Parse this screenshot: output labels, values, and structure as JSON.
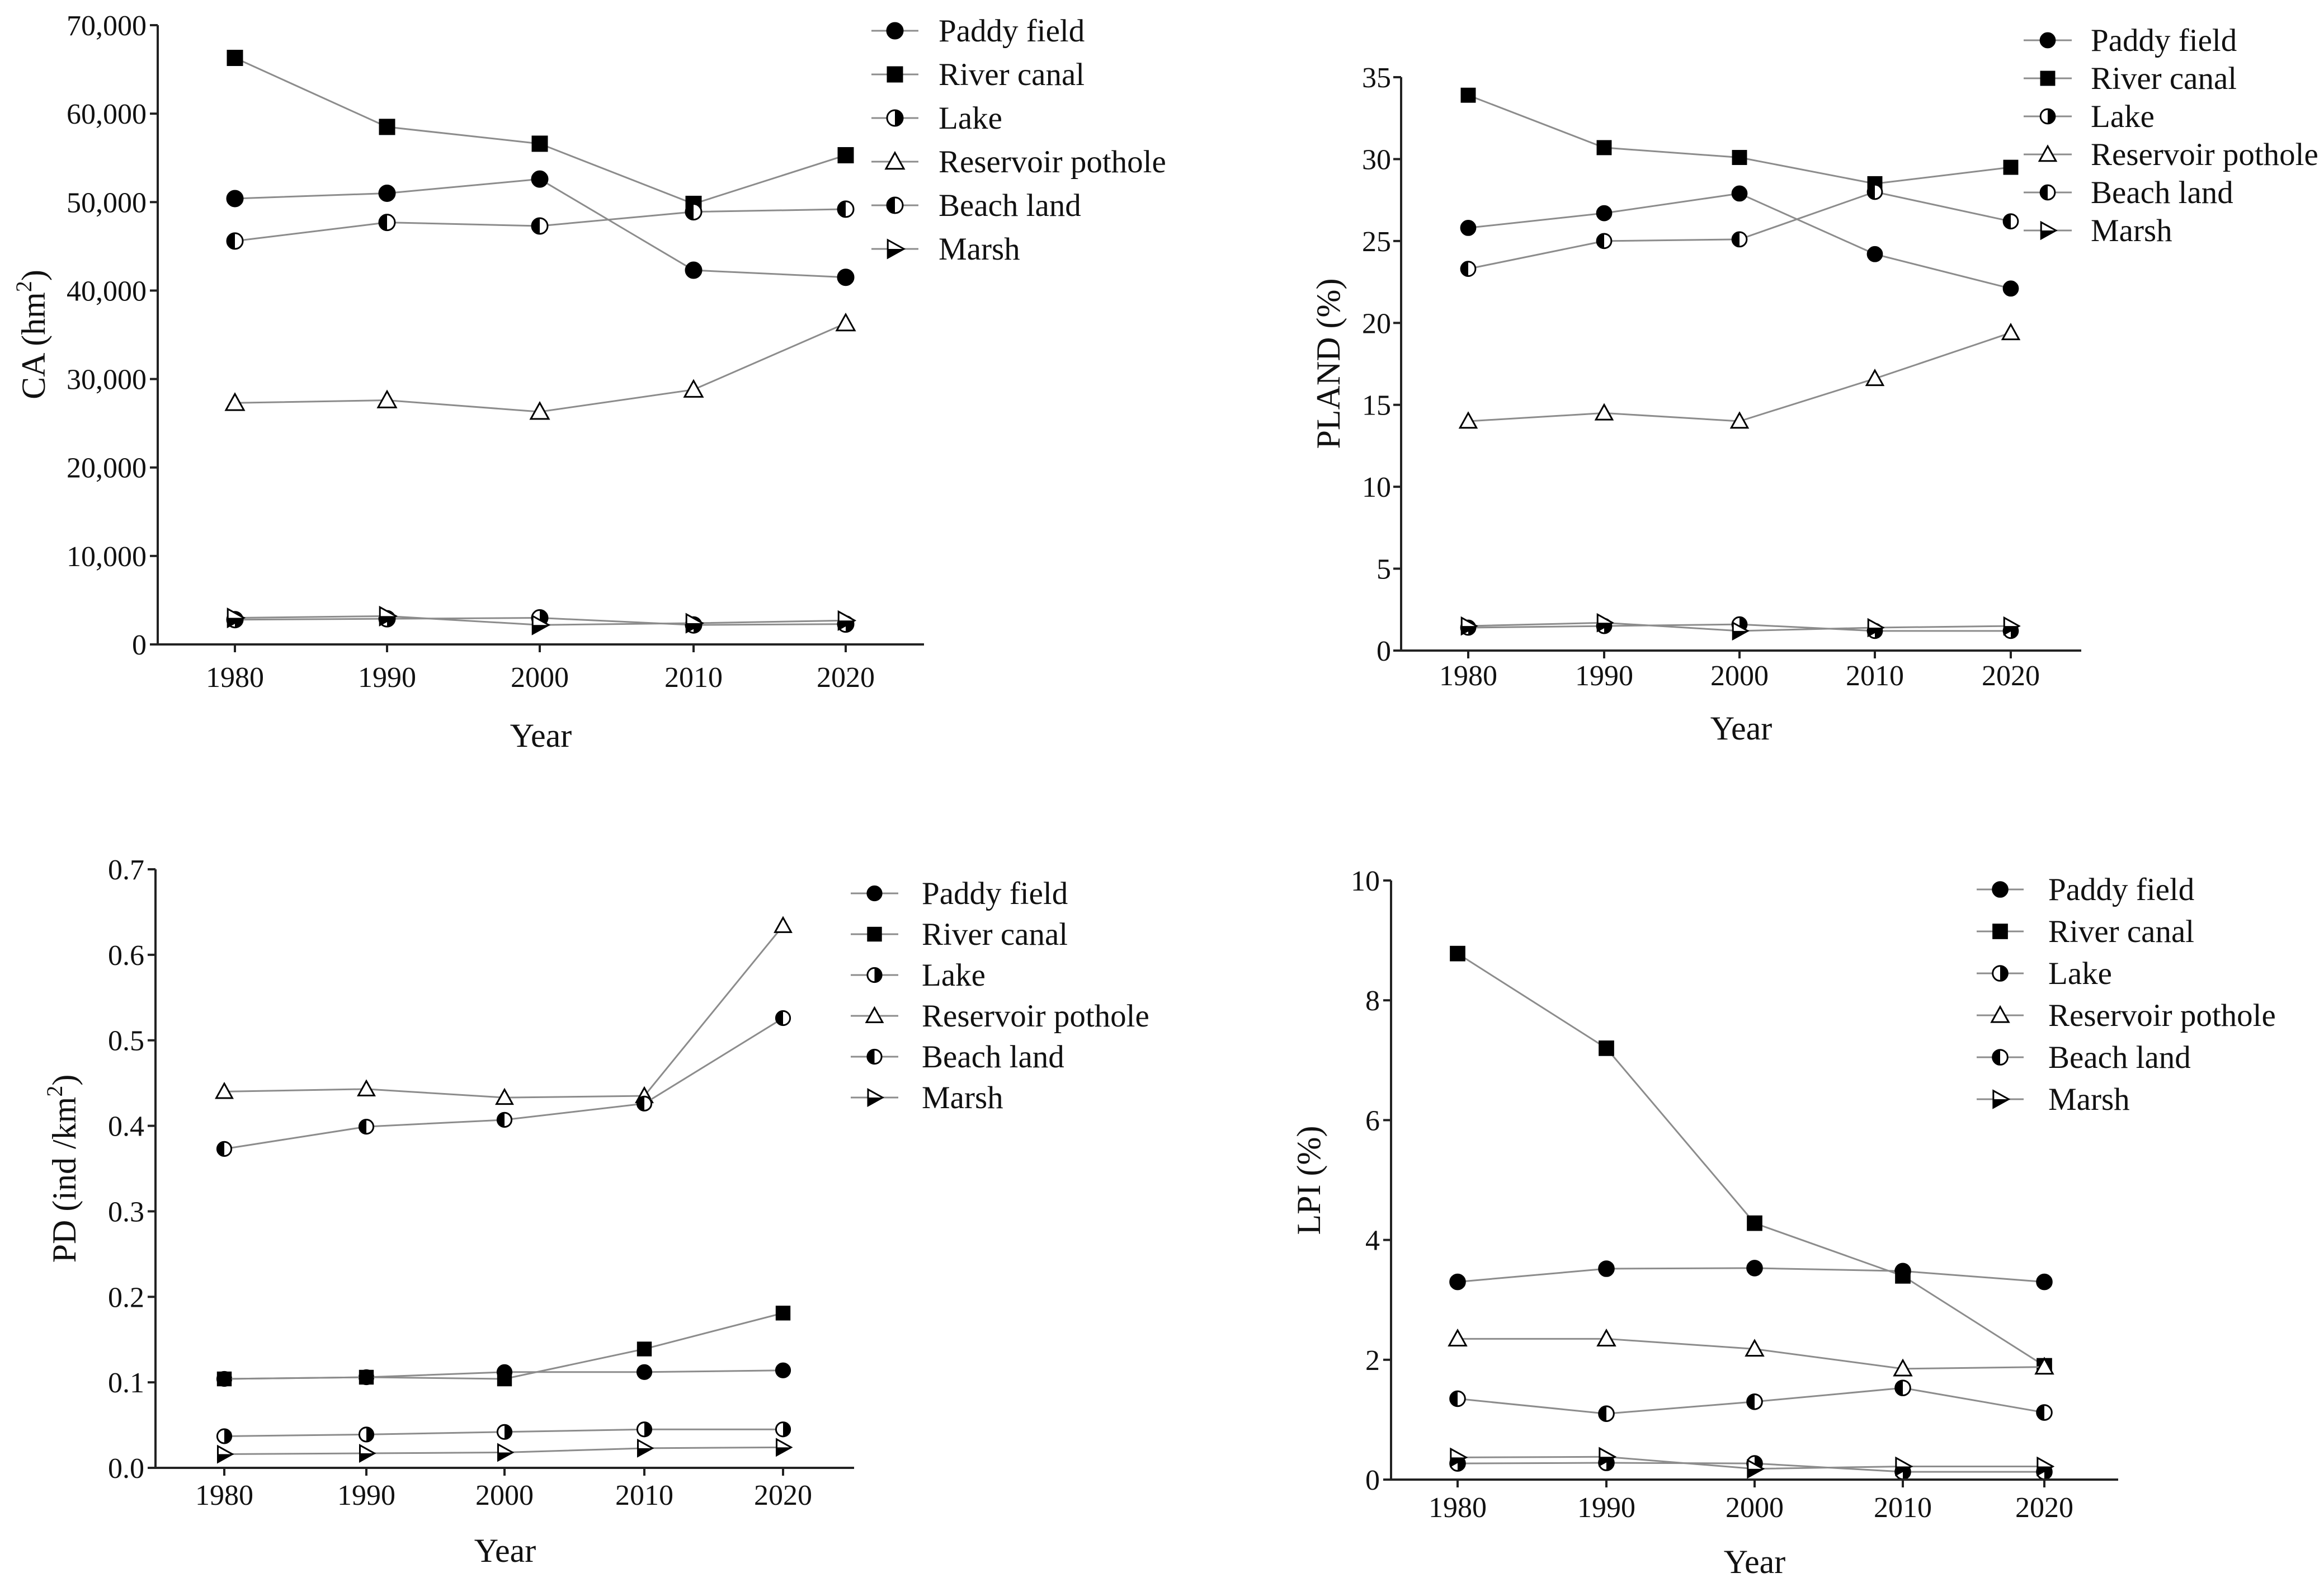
{
  "chart_data": [
    {
      "id": "ca",
      "type": "line",
      "title": "",
      "xlabel": "Year",
      "ylabel": "CA (hm²)",
      "ylabel_main": "CA (hm",
      "ylabel_sup": "2",
      "ylabel_end": ")",
      "categories": [
        "1980",
        "1990",
        "2000",
        "2010",
        "2020"
      ],
      "ylim": [
        0,
        70000
      ],
      "ytick_values": [
        0,
        10000,
        20000,
        30000,
        40000,
        50000,
        60000,
        70000
      ],
      "ytick_labels": [
        "0",
        "10,000",
        "20,000",
        "30,000",
        "40,000",
        "50,000",
        "60,000",
        "70,000"
      ],
      "grid": false,
      "legend_position": "top-right",
      "series": [
        {
          "name": "Paddy field",
          "marker": "circle-filled",
          "values": [
            50400,
            51000,
            52600,
            42300,
            41500
          ]
        },
        {
          "name": "River canal",
          "marker": "square-filled",
          "values": [
            66300,
            58500,
            56600,
            49800,
            55300
          ]
        },
        {
          "name": "Lake",
          "marker": "circle-half-right",
          "values": [
            2800,
            2900,
            3000,
            2200,
            2300
          ]
        },
        {
          "name": "Reservoir pothole",
          "marker": "triangle-open",
          "values": [
            27300,
            27600,
            26300,
            28800,
            36300
          ]
        },
        {
          "name": "Beach land",
          "marker": "circle-half-left",
          "values": [
            45600,
            47700,
            47300,
            48900,
            49200
          ]
        },
        {
          "name": "Marsh",
          "marker": "triangle-right-half",
          "values": [
            3000,
            3200,
            2200,
            2400,
            2700
          ]
        }
      ]
    },
    {
      "id": "pland",
      "type": "line",
      "title": "",
      "xlabel": "Year",
      "ylabel": "PLAND (%)",
      "categories": [
        "1980",
        "1990",
        "2000",
        "2010",
        "2020"
      ],
      "ylim": [
        0,
        35
      ],
      "ytick_values": [
        0,
        5,
        10,
        15,
        20,
        25,
        30,
        35
      ],
      "ytick_labels": [
        "0",
        "5",
        "10",
        "15",
        "20",
        "25",
        "30",
        "35"
      ],
      "grid": false,
      "legend_position": "top-right",
      "series": [
        {
          "name": "Paddy field",
          "marker": "circle-filled",
          "values": [
            25.8,
            26.7,
            27.9,
            24.2,
            22.1
          ]
        },
        {
          "name": "River canal",
          "marker": "square-filled",
          "values": [
            33.9,
            30.7,
            30.1,
            28.5,
            29.5
          ]
        },
        {
          "name": "Lake",
          "marker": "circle-half-right",
          "values": [
            1.4,
            1.5,
            1.6,
            1.2,
            1.2
          ]
        },
        {
          "name": "Reservoir pothole",
          "marker": "triangle-open",
          "values": [
            14.0,
            14.5,
            14.0,
            16.6,
            19.4
          ]
        },
        {
          "name": "Beach land",
          "marker": "circle-half-left",
          "values": [
            23.3,
            25.0,
            25.1,
            28.0,
            26.2
          ]
        },
        {
          "name": "Marsh",
          "marker": "triangle-right-half",
          "values": [
            1.5,
            1.7,
            1.2,
            1.4,
            1.5
          ]
        }
      ]
    },
    {
      "id": "pd",
      "type": "line",
      "title": "",
      "xlabel": "Year",
      "ylabel": "PD (ind /km²)",
      "ylabel_main": "PD (ind /km",
      "ylabel_sup": "2",
      "ylabel_end": ")",
      "categories": [
        "1980",
        "1990",
        "2000",
        "2010",
        "2020"
      ],
      "ylim": [
        0,
        0.7
      ],
      "ytick_values": [
        0,
        0.1,
        0.2,
        0.3,
        0.4,
        0.5,
        0.6,
        0.7
      ],
      "ytick_labels": [
        "0.0",
        "0.1",
        "0.2",
        "0.3",
        "0.4",
        "0.5",
        "0.6",
        "0.7"
      ],
      "grid": false,
      "legend_position": "top-right",
      "series": [
        {
          "name": "Paddy field",
          "marker": "circle-filled",
          "values": [
            0.104,
            0.106,
            0.112,
            0.112,
            0.114
          ]
        },
        {
          "name": "River canal",
          "marker": "square-filled",
          "values": [
            0.104,
            0.106,
            0.104,
            0.139,
            0.181
          ]
        },
        {
          "name": "Lake",
          "marker": "circle-half-right",
          "values": [
            0.037,
            0.039,
            0.042,
            0.045,
            0.045
          ]
        },
        {
          "name": "Reservoir pothole",
          "marker": "triangle-open",
          "values": [
            0.44,
            0.443,
            0.433,
            0.435,
            0.634
          ]
        },
        {
          "name": "Beach land",
          "marker": "circle-half-left",
          "values": [
            0.373,
            0.399,
            0.407,
            0.426,
            0.526
          ]
        },
        {
          "name": "Marsh",
          "marker": "triangle-right-half",
          "values": [
            0.016,
            0.017,
            0.018,
            0.023,
            0.024
          ]
        }
      ]
    },
    {
      "id": "lpi",
      "type": "line",
      "title": "",
      "xlabel": "Year",
      "ylabel": "LPI (%)",
      "categories": [
        "1980",
        "1990",
        "2000",
        "2010",
        "2020"
      ],
      "ylim": [
        0,
        10
      ],
      "ytick_values": [
        0,
        2,
        4,
        6,
        8,
        10
      ],
      "ytick_labels": [
        "0",
        "2",
        "4",
        "6",
        "8",
        "10"
      ],
      "grid": false,
      "legend_position": "top-right",
      "series": [
        {
          "name": "Paddy field",
          "marker": "circle-filled",
          "values": [
            3.3,
            3.52,
            3.53,
            3.48,
            3.3
          ]
        },
        {
          "name": "River canal",
          "marker": "square-filled",
          "values": [
            8.78,
            7.2,
            4.28,
            3.4,
            1.9
          ]
        },
        {
          "name": "Lake",
          "marker": "circle-half-right",
          "values": [
            0.27,
            0.28,
            0.27,
            0.13,
            0.13
          ]
        },
        {
          "name": "Reservoir pothole",
          "marker": "triangle-open",
          "values": [
            2.35,
            2.35,
            2.18,
            1.85,
            1.88
          ]
        },
        {
          "name": "Beach land",
          "marker": "circle-half-left",
          "values": [
            1.35,
            1.1,
            1.3,
            1.53,
            1.12
          ]
        },
        {
          "name": "Marsh",
          "marker": "triangle-right-half",
          "values": [
            0.37,
            0.38,
            0.18,
            0.22,
            0.22
          ]
        }
      ]
    }
  ]
}
